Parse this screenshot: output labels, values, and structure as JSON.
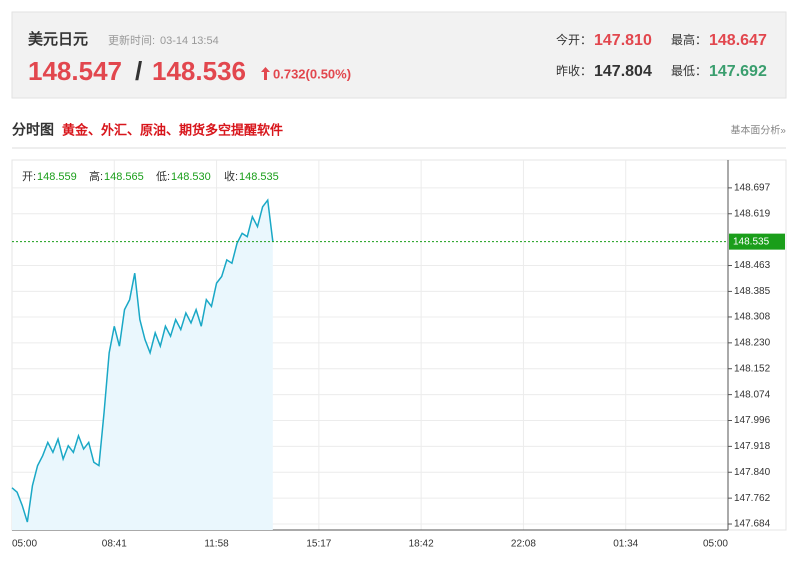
{
  "header": {
    "title": "美元日元",
    "update_label": "更新时间:",
    "update_time": "03-14 13:54",
    "bid": "148.547",
    "separator": "/",
    "ask": "148.536",
    "change": "0.732(0.50%)",
    "open_label": "今开：",
    "open": "147.810",
    "high_label": "最高：",
    "high": "148.647",
    "prev_label": "昨收：",
    "prev": "147.804",
    "low_label": "最低：",
    "low": "147.692"
  },
  "section": {
    "title": "分时图",
    "promo": "黄金、外汇、原油、期货多空提醒软件",
    "link": "基本面分析»"
  },
  "ohlc": {
    "open_label": "开:",
    "open": "148.559",
    "high_label": "高:",
    "high": "148.565",
    "low_label": "低:",
    "low": "148.530",
    "close_label": "收:",
    "close": "148.535"
  },
  "chart_data": {
    "type": "area",
    "color": "#1aa8c6",
    "fill": "#eaf7fd",
    "grid": true,
    "current_price": 148.535,
    "current_color": "#1a9e1a",
    "x": [
      0,
      1,
      2,
      3,
      4,
      5,
      6,
      7,
      8,
      9,
      10,
      11,
      12,
      13,
      14,
      15,
      16,
      17,
      18,
      19,
      20,
      21,
      22,
      23,
      24,
      25,
      26,
      27,
      28,
      29,
      30,
      31,
      32,
      33,
      34,
      35,
      36,
      37,
      38,
      39,
      40,
      41,
      42,
      43,
      44,
      45,
      46,
      47,
      48,
      49,
      50,
      51
    ],
    "values": [
      147.793,
      147.78,
      147.74,
      147.69,
      147.8,
      147.86,
      147.89,
      147.93,
      147.9,
      147.94,
      147.88,
      147.92,
      147.9,
      147.95,
      147.91,
      147.93,
      147.87,
      147.86,
      148.02,
      148.2,
      148.28,
      148.22,
      148.33,
      148.36,
      148.44,
      148.3,
      148.24,
      148.2,
      148.26,
      148.22,
      148.28,
      148.25,
      148.3,
      148.27,
      148.32,
      148.29,
      148.33,
      148.28,
      148.36,
      148.34,
      148.41,
      148.43,
      148.48,
      148.47,
      148.53,
      148.56,
      148.55,
      148.61,
      148.58,
      148.64,
      148.66,
      148.535
    ],
    "xlim": [
      0,
      140
    ],
    "xticks": [
      {
        "value": 0,
        "label": "05:00"
      },
      {
        "value": 20,
        "label": "08:41"
      },
      {
        "value": 40,
        "label": "11:58"
      },
      {
        "value": 60,
        "label": "15:17"
      },
      {
        "value": 80,
        "label": "18:42"
      },
      {
        "value": 100,
        "label": "22:08"
      },
      {
        "value": 120,
        "label": "01:34"
      },
      {
        "value": 140,
        "label": "05:00"
      }
    ],
    "ylim": [
      147.666,
      148.781
    ],
    "yticks": [
      148.697,
      148.619,
      148.463,
      148.385,
      148.308,
      {
        "value": 148.23,
        "label": "148.230"
      },
      148.152,
      148.074,
      147.996,
      147.918,
      {
        "value": 147.84,
        "label": "147.840"
      },
      147.762,
      147.684
    ]
  }
}
